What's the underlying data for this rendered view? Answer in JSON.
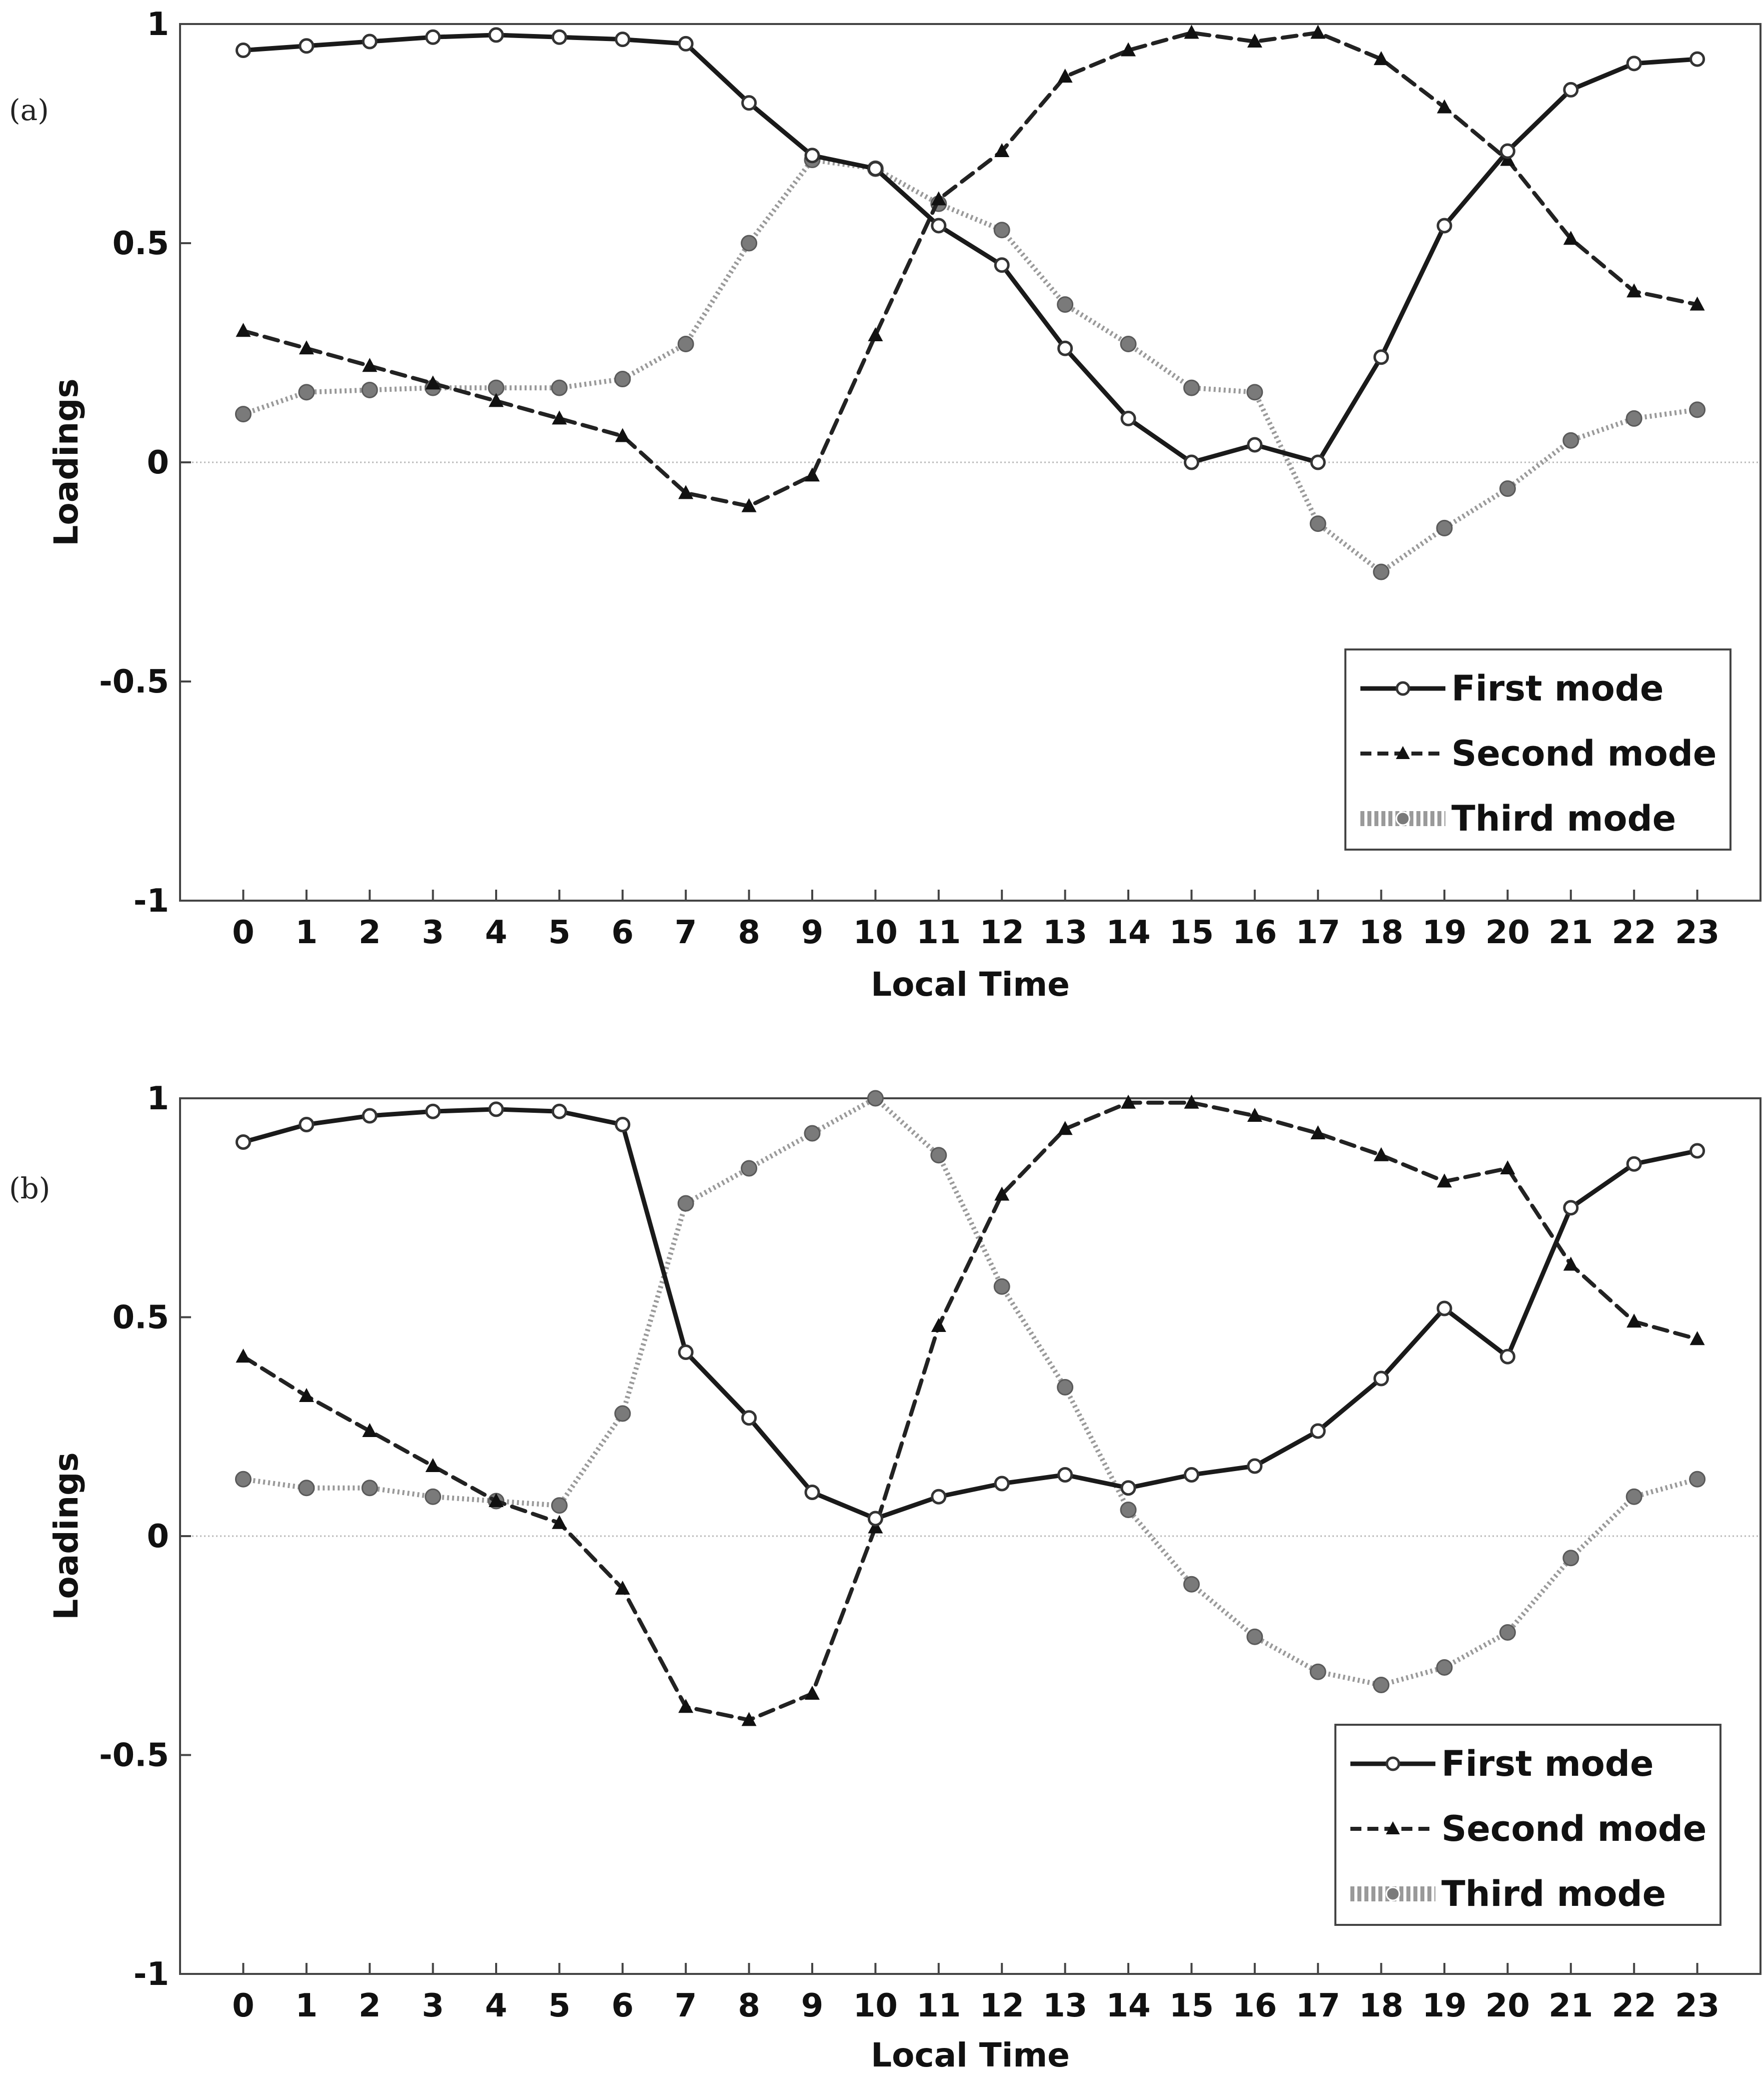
{
  "chart_data": [
    {
      "type": "line",
      "panel_label": "(a)",
      "xlabel": "Local Time",
      "ylabel": "Loadings",
      "ylim": [
        -1,
        1
      ],
      "xlim": [
        -1,
        24
      ],
      "x": [
        0,
        1,
        2,
        3,
        4,
        5,
        6,
        7,
        8,
        9,
        10,
        11,
        12,
        13,
        14,
        15,
        16,
        17,
        18,
        19,
        20,
        21,
        22,
        23
      ],
      "y_ticks": [
        -1,
        -0.5,
        0,
        0.5,
        1
      ],
      "y_tick_labels": [
        "-1",
        "-0.5",
        "0",
        "0.5",
        "1"
      ],
      "x_tick_labels": [
        "0",
        "1",
        "2",
        "3",
        "4",
        "5",
        "6",
        "7",
        "8",
        "9",
        "10",
        "11",
        "12",
        "13",
        "14",
        "15",
        "16",
        "17",
        "18",
        "19",
        "20",
        "21",
        "22",
        "23"
      ],
      "zero_line": true,
      "legend_position": "bottom-right",
      "series": [
        {
          "name": "First mode",
          "style": "solid",
          "marker": "open-circle",
          "values": [
            0.94,
            0.95,
            0.96,
            0.97,
            0.975,
            0.97,
            0.965,
            0.955,
            0.82,
            0.7,
            0.67,
            0.54,
            0.45,
            0.26,
            0.1,
            0.0,
            0.04,
            0.0,
            0.24,
            0.54,
            0.71,
            0.85,
            0.91,
            0.92
          ]
        },
        {
          "name": "Second mode",
          "style": "dashed",
          "marker": "triangle",
          "values": [
            0.3,
            0.26,
            0.22,
            0.18,
            0.14,
            0.1,
            0.06,
            -0.07,
            -0.1,
            -0.03,
            0.29,
            0.6,
            0.71,
            0.88,
            0.94,
            0.98,
            0.96,
            0.98,
            0.92,
            0.81,
            0.69,
            0.51,
            0.39,
            0.36
          ]
        },
        {
          "name": "Third mode",
          "style": "dotted",
          "marker": "filled-circle",
          "values": [
            0.11,
            0.16,
            0.165,
            0.17,
            0.17,
            0.17,
            0.19,
            0.27,
            0.5,
            0.69,
            0.67,
            0.59,
            0.53,
            0.36,
            0.27,
            0.17,
            0.16,
            -0.14,
            -0.25,
            -0.15,
            -0.06,
            0.05,
            0.1,
            0.12
          ]
        }
      ]
    },
    {
      "type": "line",
      "panel_label": "(b)",
      "xlabel": "Local Time",
      "ylabel": "Loadings",
      "ylim": [
        -1,
        1
      ],
      "xlim": [
        -1,
        24
      ],
      "x": [
        0,
        1,
        2,
        3,
        4,
        5,
        6,
        7,
        8,
        9,
        10,
        11,
        12,
        13,
        14,
        15,
        16,
        17,
        18,
        19,
        20,
        21,
        22,
        23
      ],
      "y_ticks": [
        -1,
        -0.5,
        0,
        0.5,
        1
      ],
      "y_tick_labels": [
        "-1",
        "-0.5",
        "0",
        "0.5",
        "1"
      ],
      "x_tick_labels": [
        "0",
        "1",
        "2",
        "3",
        "4",
        "5",
        "6",
        "7",
        "8",
        "9",
        "10",
        "11",
        "12",
        "13",
        "14",
        "15",
        "16",
        "17",
        "18",
        "19",
        "20",
        "21",
        "22",
        "23"
      ],
      "zero_line": true,
      "legend_position": "bottom-right",
      "series": [
        {
          "name": "First mode",
          "style": "solid",
          "marker": "open-circle",
          "values": [
            0.9,
            0.94,
            0.96,
            0.97,
            0.975,
            0.97,
            0.94,
            0.42,
            0.27,
            0.1,
            0.04,
            0.09,
            0.12,
            0.14,
            0.11,
            0.14,
            0.16,
            0.24,
            0.36,
            0.52,
            0.41,
            0.75,
            0.85,
            0.88
          ]
        },
        {
          "name": "Second mode",
          "style": "dashed",
          "marker": "triangle",
          "values": [
            0.41,
            0.32,
            0.24,
            0.16,
            0.08,
            0.03,
            -0.12,
            -0.39,
            -0.42,
            -0.36,
            0.02,
            0.48,
            0.78,
            0.93,
            0.99,
            0.99,
            0.96,
            0.92,
            0.87,
            0.81,
            0.84,
            0.62,
            0.49,
            0.45
          ]
        },
        {
          "name": "Third mode",
          "style": "dotted",
          "marker": "filled-circle",
          "values": [
            0.13,
            0.11,
            0.11,
            0.09,
            0.08,
            0.07,
            0.28,
            0.76,
            0.84,
            0.92,
            1.0,
            0.87,
            0.57,
            0.34,
            0.06,
            -0.11,
            -0.23,
            -0.31,
            -0.34,
            -0.3,
            -0.22,
            -0.05,
            0.09,
            0.13
          ]
        }
      ]
    }
  ]
}
